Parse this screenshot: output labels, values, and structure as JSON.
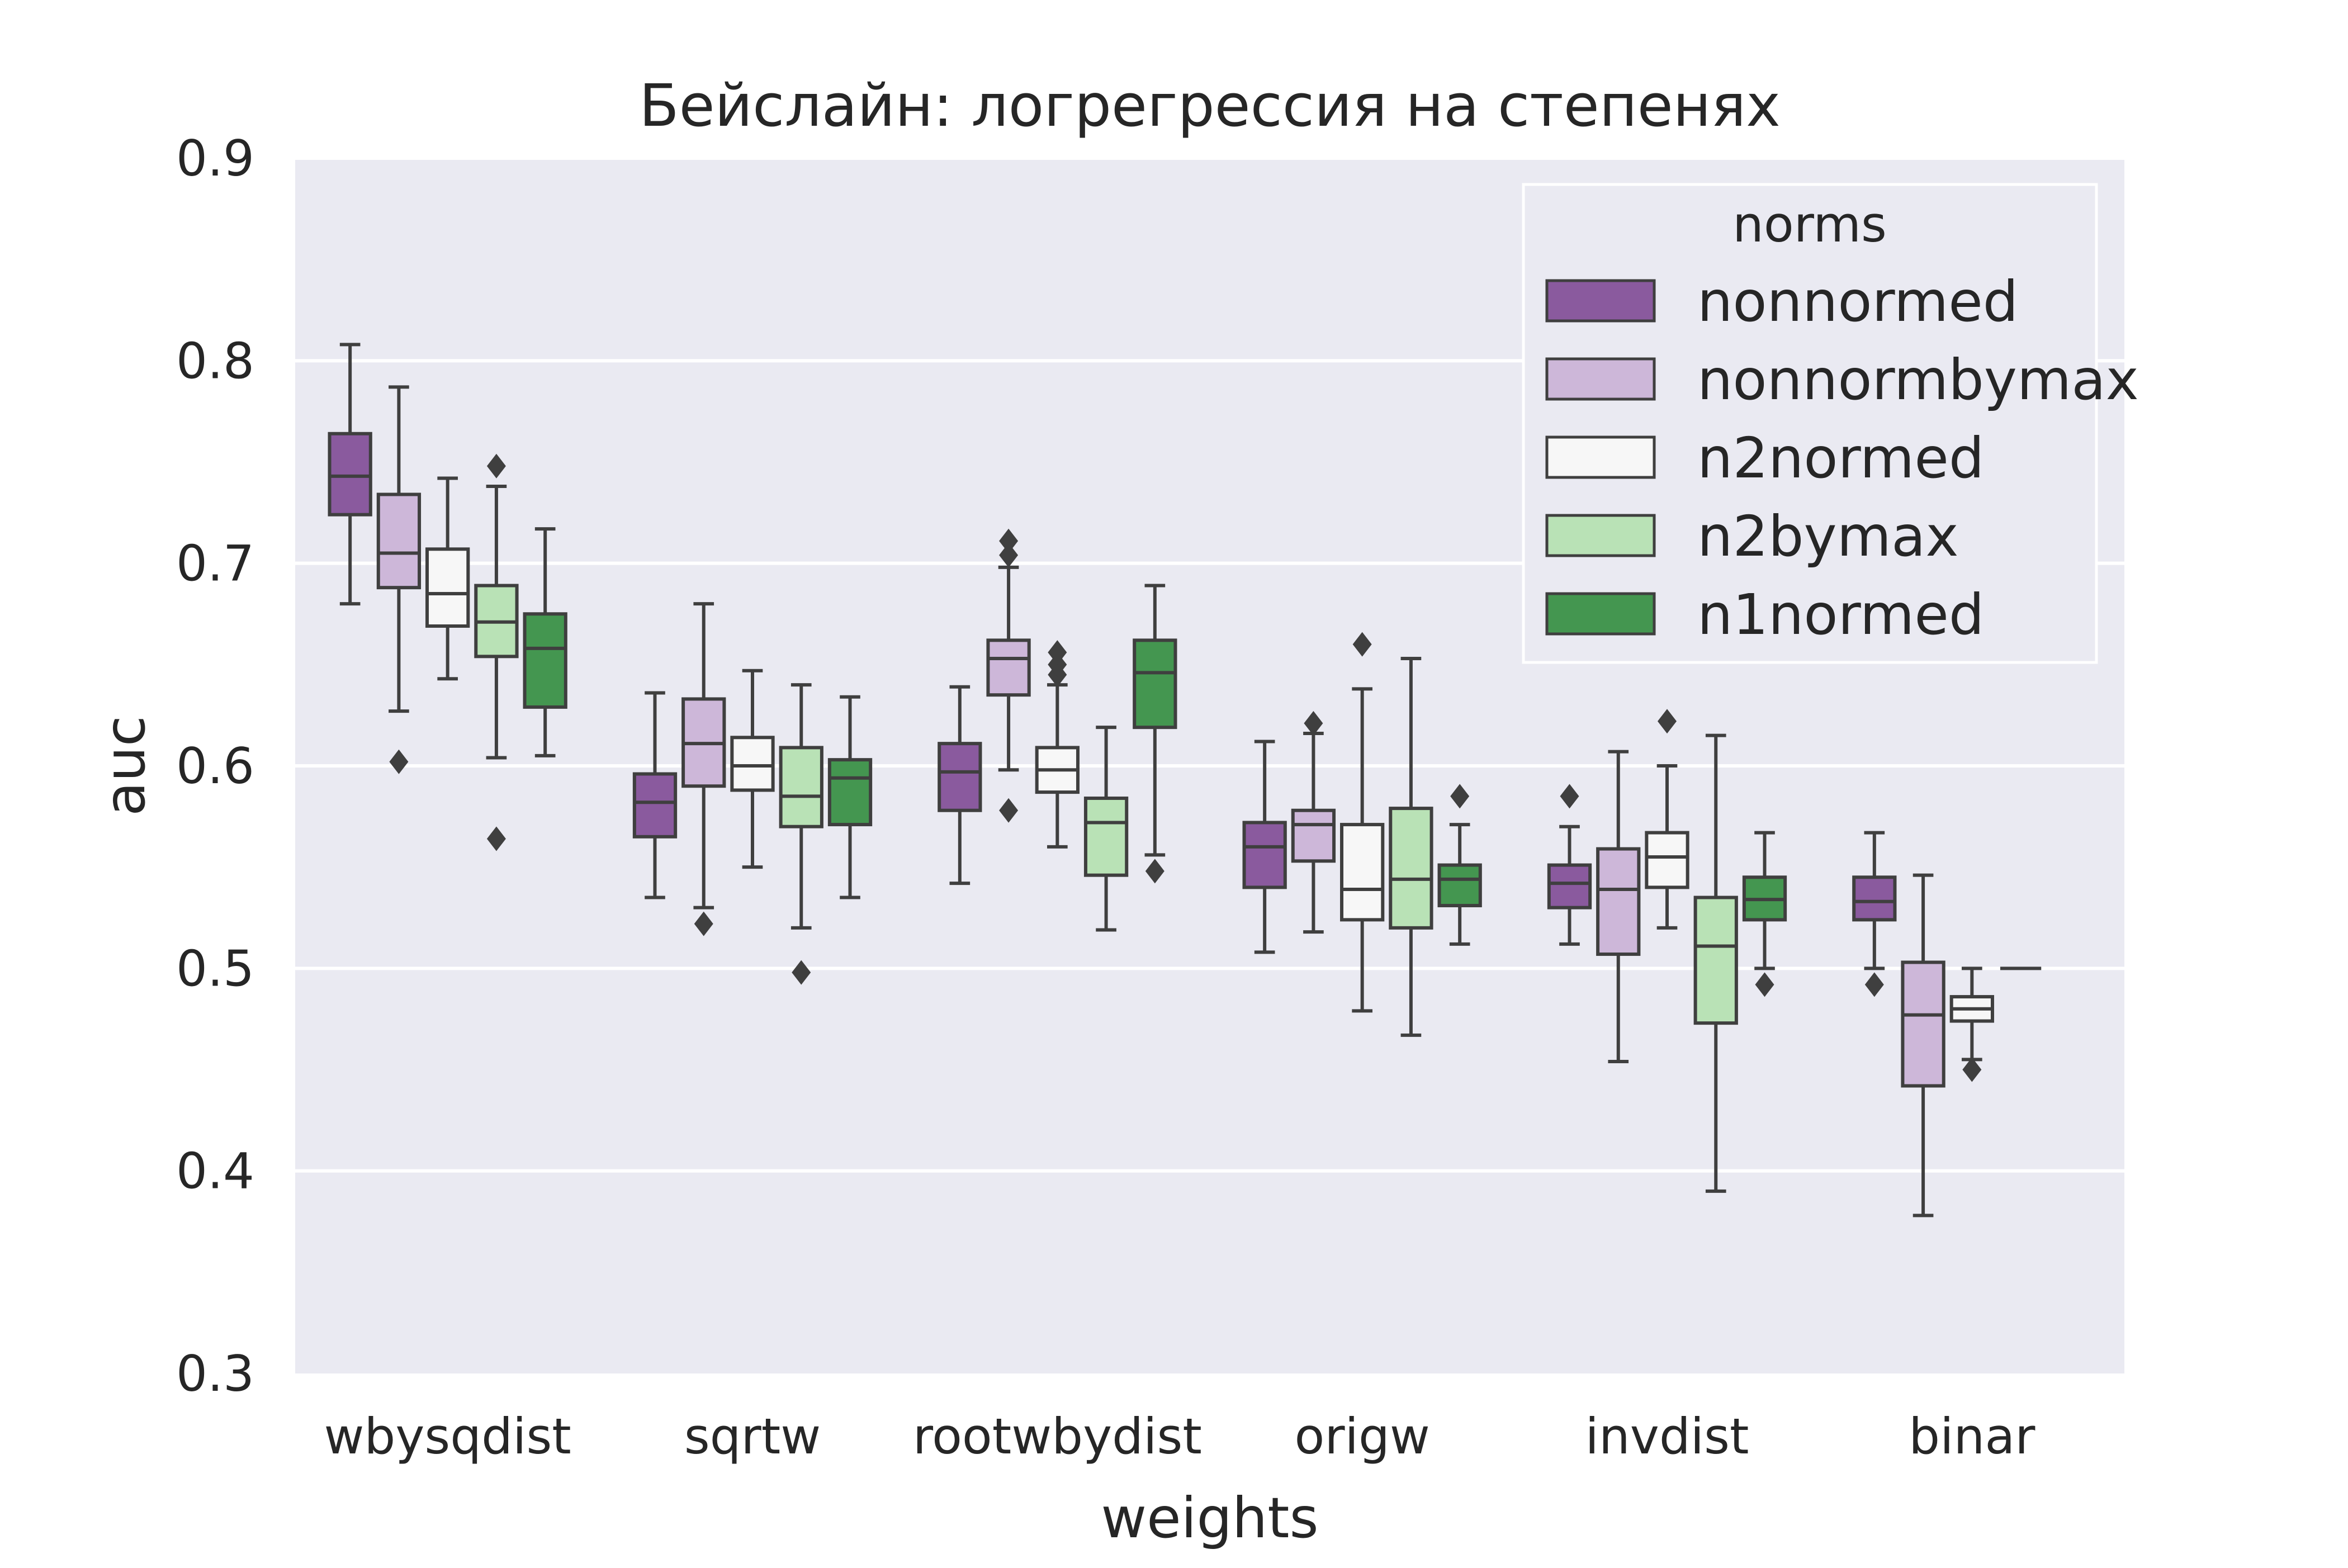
{
  "chart_data": {
    "type": "box",
    "title": "Бейслайн: логрегрессия на степенях",
    "xlabel": "weights",
    "ylabel": "auc",
    "ylim": [
      0.3,
      0.9
    ],
    "yticks": [
      "0.3",
      "0.4",
      "0.5",
      "0.6",
      "0.7",
      "0.8",
      "0.9"
    ],
    "grid": "horizontal",
    "legend": {
      "title": "norms",
      "placement": "top-right"
    },
    "categories": [
      "wbysqdist",
      "sqrtw",
      "rootwbydist",
      "origw",
      "invdist",
      "binar"
    ],
    "series": [
      {
        "name": "nonnormed",
        "color": "#8a5a9e",
        "boxes": [
          {
            "whislo": 0.68,
            "q1": 0.724,
            "med": 0.743,
            "q3": 0.764,
            "whishi": 0.808,
            "fliers": []
          },
          {
            "whislo": 0.535,
            "q1": 0.565,
            "med": 0.582,
            "q3": 0.596,
            "whishi": 0.636,
            "fliers": []
          },
          {
            "whislo": 0.542,
            "q1": 0.578,
            "med": 0.597,
            "q3": 0.611,
            "whishi": 0.639,
            "fliers": []
          },
          {
            "whislo": 0.508,
            "q1": 0.54,
            "med": 0.56,
            "q3": 0.572,
            "whishi": 0.612,
            "fliers": []
          },
          {
            "whislo": 0.512,
            "q1": 0.53,
            "med": 0.542,
            "q3": 0.551,
            "whishi": 0.57,
            "fliers": [
              0.585
            ]
          },
          {
            "whislo": 0.5,
            "q1": 0.524,
            "med": 0.533,
            "q3": 0.545,
            "whishi": 0.567,
            "fliers": [
              0.492
            ]
          }
        ]
      },
      {
        "name": "nonnormbymax",
        "color": "#cdb7d9",
        "boxes": [
          {
            "whislo": 0.627,
            "q1": 0.688,
            "med": 0.705,
            "q3": 0.734,
            "whishi": 0.787,
            "fliers": [
              0.602
            ]
          },
          {
            "whislo": 0.53,
            "q1": 0.59,
            "med": 0.611,
            "q3": 0.633,
            "whishi": 0.68,
            "fliers": [
              0.522
            ]
          },
          {
            "whislo": 0.598,
            "q1": 0.635,
            "med": 0.653,
            "q3": 0.662,
            "whishi": 0.698,
            "fliers": [
              0.578,
              0.704,
              0.711
            ]
          },
          {
            "whislo": 0.518,
            "q1": 0.553,
            "med": 0.571,
            "q3": 0.578,
            "whishi": 0.616,
            "fliers": [
              0.621
            ]
          },
          {
            "whislo": 0.454,
            "q1": 0.507,
            "med": 0.539,
            "q3": 0.559,
            "whishi": 0.607,
            "fliers": []
          },
          {
            "whislo": 0.378,
            "q1": 0.442,
            "med": 0.477,
            "q3": 0.503,
            "whishi": 0.546,
            "fliers": []
          }
        ]
      },
      {
        "name": "n2normed",
        "color": "#f7f7f7",
        "boxes": [
          {
            "whislo": 0.643,
            "q1": 0.669,
            "med": 0.685,
            "q3": 0.707,
            "whishi": 0.742,
            "fliers": []
          },
          {
            "whislo": 0.55,
            "q1": 0.588,
            "med": 0.6,
            "q3": 0.614,
            "whishi": 0.647,
            "fliers": []
          },
          {
            "whislo": 0.56,
            "q1": 0.587,
            "med": 0.598,
            "q3": 0.609,
            "whishi": 0.64,
            "fliers": [
              0.645,
              0.65,
              0.656
            ]
          },
          {
            "whislo": 0.479,
            "q1": 0.524,
            "med": 0.539,
            "q3": 0.571,
            "whishi": 0.638,
            "fliers": [
              0.66
            ]
          },
          {
            "whislo": 0.52,
            "q1": 0.54,
            "med": 0.555,
            "q3": 0.567,
            "whishi": 0.6,
            "fliers": [
              0.622
            ]
          },
          {
            "whislo": 0.455,
            "q1": 0.474,
            "med": 0.48,
            "q3": 0.486,
            "whishi": 0.5,
            "fliers": [
              0.45
            ]
          }
        ]
      },
      {
        "name": "n2bymax",
        "color": "#b9e2b6",
        "boxes": [
          {
            "whislo": 0.604,
            "q1": 0.654,
            "med": 0.671,
            "q3": 0.689,
            "whishi": 0.738,
            "fliers": [
              0.564,
              0.748
            ]
          },
          {
            "whislo": 0.52,
            "q1": 0.57,
            "med": 0.585,
            "q3": 0.609,
            "whishi": 0.64,
            "fliers": [
              0.498
            ]
          },
          {
            "whislo": 0.519,
            "q1": 0.546,
            "med": 0.572,
            "q3": 0.584,
            "whishi": 0.619,
            "fliers": []
          },
          {
            "whislo": 0.467,
            "q1": 0.52,
            "med": 0.544,
            "q3": 0.579,
            "whishi": 0.653,
            "fliers": []
          },
          {
            "whislo": 0.39,
            "q1": 0.473,
            "med": 0.511,
            "q3": 0.535,
            "whishi": 0.615,
            "fliers": []
          },
          {
            "whislo": 0.5,
            "q1": 0.5,
            "med": 0.5,
            "q3": 0.5,
            "whishi": 0.5,
            "fliers": []
          }
        ]
      },
      {
        "name": "n1normed",
        "color": "#449650",
        "boxes": [
          {
            "whislo": 0.605,
            "q1": 0.629,
            "med": 0.658,
            "q3": 0.675,
            "whishi": 0.717,
            "fliers": []
          },
          {
            "whislo": 0.535,
            "q1": 0.571,
            "med": 0.594,
            "q3": 0.603,
            "whishi": 0.634,
            "fliers": []
          },
          {
            "whislo": 0.556,
            "q1": 0.619,
            "med": 0.646,
            "q3": 0.662,
            "whishi": 0.689,
            "fliers": [
              0.548
            ]
          },
          {
            "whislo": 0.512,
            "q1": 0.531,
            "med": 0.544,
            "q3": 0.551,
            "whishi": 0.571,
            "fliers": [
              0.585
            ]
          },
          {
            "whislo": 0.5,
            "q1": 0.524,
            "med": 0.534,
            "q3": 0.545,
            "whishi": 0.567,
            "fliers": [
              0.492
            ]
          },
          null
        ]
      }
    ]
  }
}
